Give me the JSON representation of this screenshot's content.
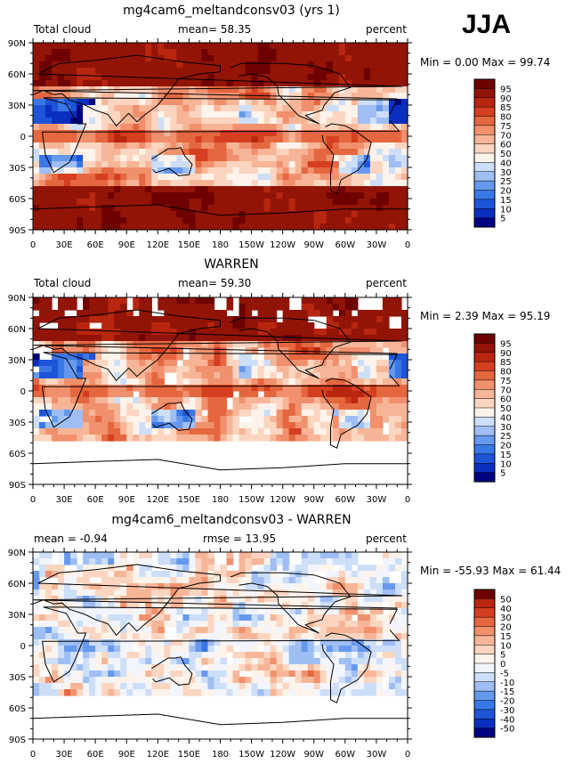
{
  "season": "JJA",
  "panels": [
    {
      "title": "mg4cam6_meltandconsv03 (yrs 1)",
      "left_label": "Total cloud",
      "center_label": "mean=  58.35",
      "right_label": "percent",
      "minmax": "Min =    0.00 Max =  99.74",
      "colorbar_labels": [
        "95",
        "90",
        "85",
        "80",
        "75",
        "70",
        "60",
        "50",
        "40",
        "30",
        "25",
        "20",
        "15",
        "10",
        "5"
      ]
    },
    {
      "title": "WARREN",
      "left_label": "Total cloud",
      "center_label": "mean=  59.30",
      "right_label": "percent",
      "minmax": "Min =    2.39 Max =  95.19",
      "colorbar_labels": [
        "95",
        "90",
        "85",
        "80",
        "75",
        "70",
        "60",
        "50",
        "40",
        "30",
        "25",
        "20",
        "15",
        "10",
        "5"
      ]
    },
    {
      "title": "mg4cam6_meltandconsv03 - WARREN",
      "left_label": "mean =  -0.94",
      "center_label": "rmse =   13.95",
      "right_label": "percent",
      "minmax": "Min = -55.93 Max =  61.44",
      "colorbar_labels": [
        "50",
        "40",
        "30",
        "20",
        "15",
        "10",
        "5",
        "0",
        "-5",
        "-10",
        "-15",
        "-20",
        "-30",
        "-40",
        "-50"
      ]
    }
  ],
  "lat_ticks": [
    "90N",
    "60N",
    "30N",
    "0",
    "30S",
    "60S",
    "90S"
  ],
  "lon_ticks": [
    "0",
    "30E",
    "60E",
    "90E",
    "120E",
    "150E",
    "180",
    "150W",
    "120W",
    "90W",
    "60W",
    "30W",
    "0"
  ],
  "colors": {
    "abs_scale": [
      "#000080",
      "#0a2fbf",
      "#1d54d8",
      "#3a77e6",
      "#6699ee",
      "#9ebef4",
      "#cddef8",
      "#fdf3ea",
      "#fbd5c0",
      "#f7b597",
      "#f1906d",
      "#e5673f",
      "#d53f1f",
      "#b8260f",
      "#921406",
      "#6e0000"
    ],
    "diff_scale": [
      "#000080",
      "#0a2fbf",
      "#1d54d8",
      "#3a77e6",
      "#6699ee",
      "#9ebef4",
      "#cddef8",
      "#f2f5fd",
      "#fdf3ea",
      "#fbd5c0",
      "#f7b597",
      "#f1906d",
      "#e5673f",
      "#d53f1f",
      "#b8260f",
      "#6e0000"
    ]
  }
}
